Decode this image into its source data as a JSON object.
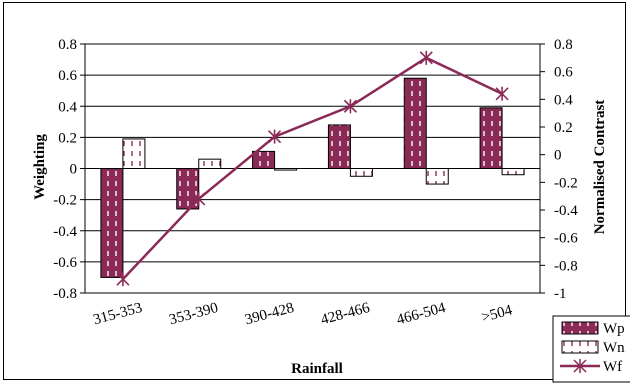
{
  "chart_data": {
    "type": "bar",
    "categories": [
      "315-353",
      "353-390",
      "390-428",
      "428-466",
      "466-504",
      ">504"
    ],
    "series": [
      {
        "name": "Wp",
        "type": "bar",
        "axis": "left",
        "values": [
          -0.7,
          -0.26,
          0.11,
          0.28,
          0.58,
          0.39
        ],
        "color": "#8b2a57",
        "pattern": "dashed-white-vertical"
      },
      {
        "name": "Wn",
        "type": "bar",
        "axis": "left",
        "values": [
          0.19,
          0.06,
          -0.01,
          -0.05,
          -0.1,
          -0.04
        ],
        "color": "#ffffff",
        "pattern": "dashed-maroon-vertical"
      },
      {
        "name": "Wf",
        "type": "line",
        "axis": "right",
        "values": [
          -0.9,
          -0.32,
          0.13,
          0.35,
          0.7,
          0.44
        ],
        "color": "#8b2a57",
        "marker": "star"
      }
    ],
    "title": "",
    "xlabel": "Rainfall",
    "ylabel": "Weighting",
    "y2label": "Normalised Contrast",
    "ylim": [
      -0.8,
      0.8
    ],
    "y2lim": [
      -1,
      0.8
    ],
    "yticks": [
      "0.8",
      "0.6",
      "0.4",
      "0.2",
      "0",
      "-0.2",
      "-0.4",
      "-0.6",
      "-0.8"
    ],
    "y2ticks": [
      "0.8",
      "0.6",
      "0.4",
      "0.2",
      "0",
      "-0.2",
      "-0.4",
      "-0.6",
      "-0.8",
      "-1"
    ],
    "grid": true,
    "legend_position": "bottom-right"
  }
}
